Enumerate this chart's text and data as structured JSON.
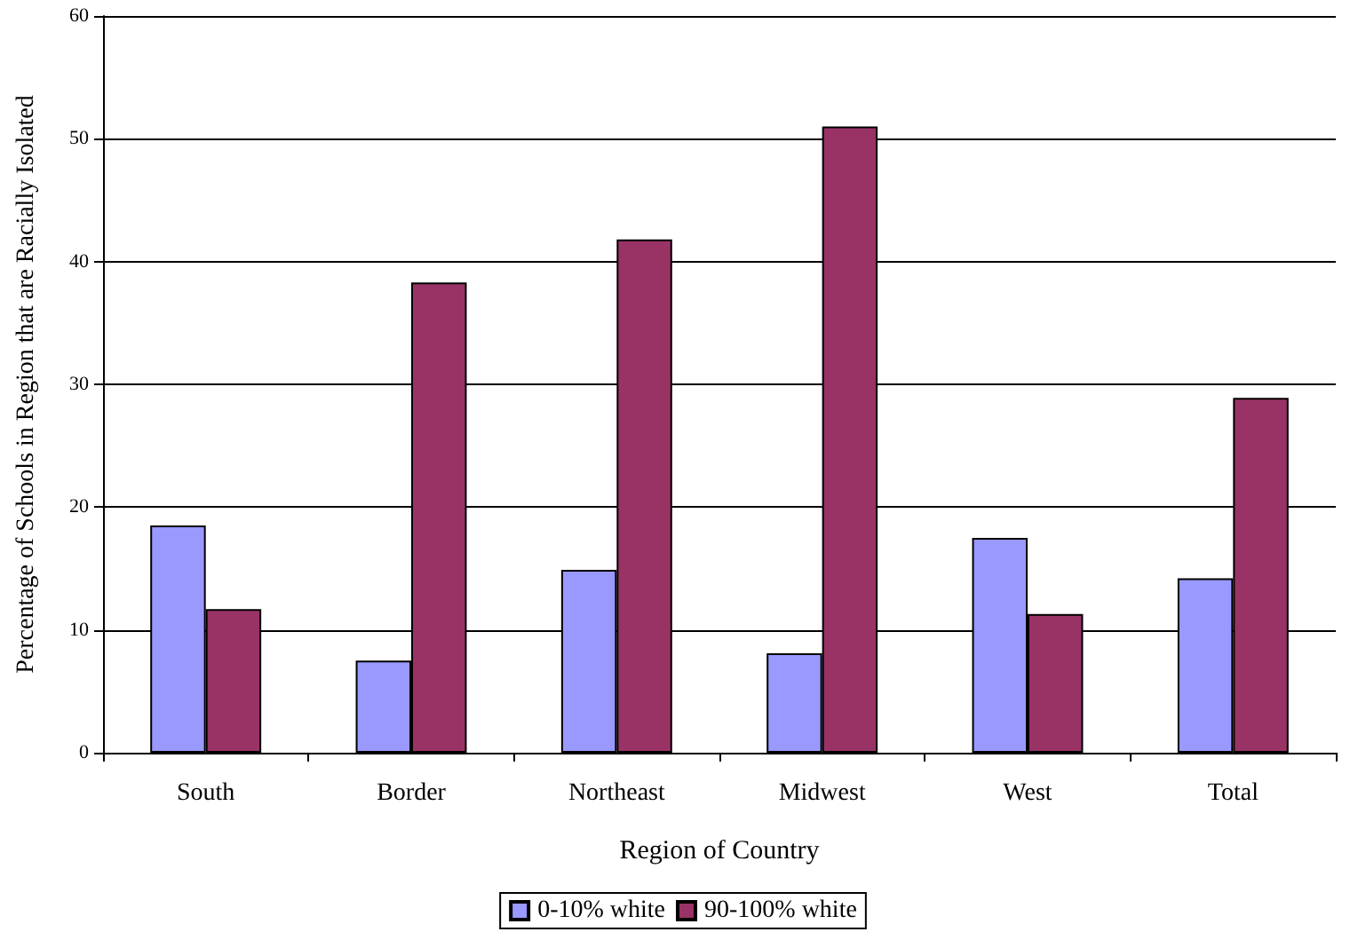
{
  "chart_data": {
    "type": "bar",
    "xlabel": "Region of Country",
    "ylabel": "Percentage of Schools in Region that are Racially Isolated",
    "categories": [
      "South",
      "Border",
      "Northeast",
      "Midwest",
      "West",
      "Total"
    ],
    "series": [
      {
        "name": "0-10% white",
        "color": "#9999ff",
        "values": [
          18.5,
          7.5,
          14.9,
          8.1,
          17.5,
          14.2
        ]
      },
      {
        "name": "90-100% white",
        "color": "#993366",
        "values": [
          11.7,
          38.3,
          41.8,
          51.0,
          11.3,
          28.9
        ]
      }
    ],
    "ylim": [
      0,
      60
    ],
    "yticks": [
      0,
      10,
      20,
      30,
      40,
      50,
      60
    ],
    "grid": "y",
    "legend": "bottom"
  }
}
